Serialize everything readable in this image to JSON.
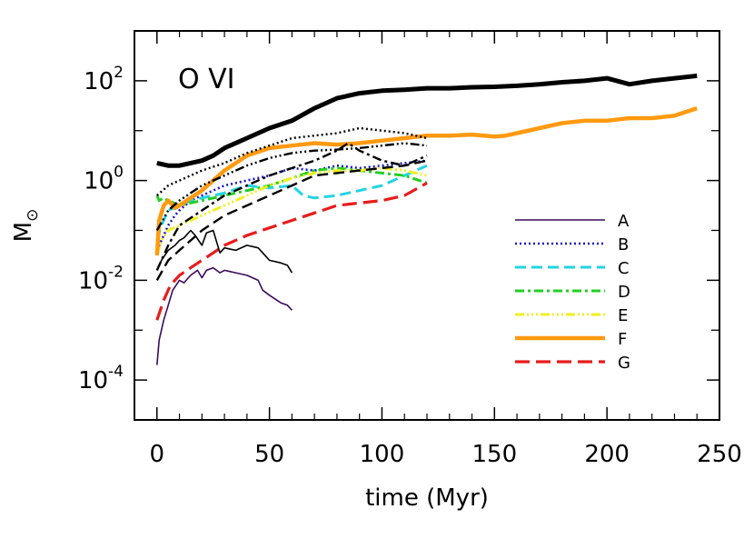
{
  "chart_data": {
    "type": "line",
    "title": "O VI",
    "xlabel": "time (Myr)",
    "ylabel": "M",
    "ylabel_symbol": "⊙",
    "xlim": [
      -10,
      250
    ],
    "ylim_log10": [
      -4.8,
      3.0
    ],
    "x_ticks": [
      0,
      50,
      100,
      150,
      200,
      250
    ],
    "x_tick_labels": [
      "0",
      "50",
      "100",
      "150",
      "200",
      "250"
    ],
    "y_ticks_log10": [
      -4,
      -2,
      0,
      2
    ],
    "y_tick_labels": [
      {
        "base": "10",
        "exp": "-4"
      },
      {
        "base": "10",
        "exp": "-2"
      },
      {
        "base": "10",
        "exp": "0"
      },
      {
        "base": "10",
        "exp": "2"
      }
    ],
    "legend": {
      "placement": "center-right",
      "entries": [
        "A",
        "B",
        "C",
        "D",
        "E",
        "F",
        "G"
      ]
    },
    "series": [
      {
        "name": "A",
        "color": "#3b0a5a",
        "dash": "none",
        "width": 1.6,
        "x": [
          0,
          1,
          2,
          3,
          5,
          7,
          10,
          12,
          15,
          18,
          20,
          22,
          25,
          28,
          30,
          35,
          40,
          45,
          47,
          50,
          55,
          58,
          60
        ],
        "y": [
          -3.7,
          -3.2,
          -3.0,
          -2.8,
          -2.5,
          -2.2,
          -2.0,
          -2.05,
          -1.9,
          -1.8,
          -1.95,
          -1.8,
          -1.75,
          -1.85,
          -1.8,
          -1.85,
          -1.9,
          -2.0,
          -2.2,
          -2.3,
          -2.45,
          -2.5,
          -2.6
        ]
      },
      {
        "name": "B",
        "color": "#1818c8",
        "dash": "2,3",
        "width": 2.6,
        "x": [
          0,
          2,
          5,
          8,
          10,
          15,
          20,
          25,
          30,
          40,
          50,
          60,
          70,
          80,
          90,
          100,
          110,
          120
        ],
        "y": [
          -1.4,
          -1.2,
          -0.9,
          -0.7,
          -0.6,
          -0.4,
          -0.3,
          -0.2,
          -0.1,
          0.0,
          0.1,
          0.25,
          0.2,
          0.3,
          0.25,
          0.3,
          0.35,
          0.4
        ]
      },
      {
        "name": "C",
        "color": "#22d4e4",
        "dash": "12,6",
        "width": 3,
        "x": [
          0,
          2,
          5,
          10,
          15,
          20,
          25,
          30,
          40,
          50,
          60,
          65,
          70,
          80,
          90,
          100,
          110,
          120
        ],
        "y": [
          -1.2,
          -0.9,
          -0.6,
          -0.5,
          -0.4,
          -0.35,
          -0.3,
          -0.25,
          -0.1,
          -0.15,
          -0.1,
          -0.3,
          -0.35,
          -0.3,
          -0.2,
          -0.1,
          0.1,
          0.3
        ]
      },
      {
        "name": "D",
        "color": "#22d022",
        "dash": "10,4,3,4",
        "width": 3,
        "x": [
          0,
          1,
          3,
          5,
          10,
          15,
          20,
          30,
          40,
          50,
          60,
          70,
          80,
          90,
          100,
          110,
          120
        ],
        "y": [
          -0.3,
          -0.4,
          -0.35,
          -0.4,
          -0.5,
          -0.45,
          -0.4,
          -0.3,
          -0.2,
          -0.1,
          0.05,
          0.2,
          0.25,
          0.2,
          0.15,
          0.1,
          -0.05
        ]
      },
      {
        "name": "E",
        "color": "#f0f020",
        "dash": "10,3,2,3,2,3,2,3",
        "width": 3,
        "x": [
          0,
          2,
          5,
          10,
          15,
          20,
          30,
          40,
          50,
          60,
          70,
          80,
          90,
          100,
          110,
          120
        ],
        "y": [
          -1.5,
          -1.2,
          -1.0,
          -0.9,
          -0.8,
          -0.7,
          -0.5,
          -0.3,
          -0.1,
          0.05,
          0.15,
          0.2,
          0.2,
          0.25,
          0.2,
          0.1
        ]
      },
      {
        "name": "F",
        "color": "#ff9a10",
        "dash": "none",
        "width": 4.5,
        "x": [
          0,
          1,
          3,
          5,
          8,
          10,
          15,
          20,
          25,
          30,
          40,
          50,
          60,
          70,
          80,
          90,
          100,
          110,
          120,
          130,
          140,
          150,
          155,
          160,
          170,
          180,
          190,
          200,
          210,
          220,
          230,
          240
        ],
        "y": [
          -1.5,
          -0.8,
          -0.5,
          -0.4,
          -0.55,
          -0.5,
          -0.35,
          -0.2,
          0.0,
          0.2,
          0.5,
          0.65,
          0.7,
          0.75,
          0.72,
          0.75,
          0.8,
          0.85,
          0.9,
          0.9,
          0.92,
          0.88,
          0.9,
          0.95,
          1.05,
          1.15,
          1.2,
          1.2,
          1.25,
          1.25,
          1.3,
          1.45
        ]
      },
      {
        "name": "G",
        "color": "#e81c1c",
        "dash": "16,7",
        "width": 3.2,
        "x": [
          0,
          3,
          6,
          10,
          15,
          20,
          25,
          30,
          40,
          50,
          60,
          70,
          80,
          90,
          100,
          110,
          120
        ],
        "y": [
          -2.8,
          -2.4,
          -2.1,
          -1.9,
          -1.75,
          -1.6,
          -1.45,
          -1.3,
          -1.1,
          -0.95,
          -0.8,
          -0.65,
          -0.5,
          -0.45,
          -0.4,
          -0.3,
          -0.05
        ]
      },
      {
        "name": "",
        "color": "#000000",
        "dash": "none",
        "width": 5,
        "x": [
          0,
          5,
          10,
          15,
          20,
          25,
          30,
          40,
          50,
          60,
          70,
          80,
          90,
          100,
          110,
          120,
          130,
          140,
          150,
          160,
          170,
          180,
          190,
          200,
          210,
          220,
          230,
          240
        ],
        "y": [
          0.35,
          0.3,
          0.3,
          0.35,
          0.4,
          0.5,
          0.65,
          0.85,
          1.05,
          1.2,
          1.45,
          1.65,
          1.75,
          1.8,
          1.82,
          1.85,
          1.85,
          1.87,
          1.88,
          1.9,
          1.93,
          1.97,
          2.0,
          2.05,
          1.93,
          2.0,
          2.05,
          2.1
        ]
      },
      {
        "name": "",
        "color": "#000000",
        "dash": "none",
        "width": 1.6,
        "x": [
          0,
          2,
          5,
          8,
          10,
          12,
          15,
          17,
          20,
          22,
          25,
          28,
          30,
          35,
          40,
          45,
          48,
          50,
          55,
          58,
          60
        ],
        "y": [
          -1.8,
          -1.6,
          -1.4,
          -1.3,
          -1.2,
          -1.15,
          -1.0,
          -1.1,
          -1.3,
          -1.05,
          -1.0,
          -1.45,
          -1.35,
          -1.4,
          -1.3,
          -1.35,
          -1.5,
          -1.6,
          -1.65,
          -1.7,
          -1.85
        ]
      },
      {
        "name": "",
        "color": "#000000",
        "dash": "2,3",
        "width": 2.4,
        "x": [
          0,
          5,
          10,
          20,
          30,
          40,
          50,
          60,
          70,
          80,
          90,
          100,
          110,
          120
        ],
        "y": [
          -0.3,
          -0.1,
          0.0,
          0.2,
          0.35,
          0.55,
          0.7,
          0.85,
          0.9,
          0.95,
          1.05,
          1.0,
          0.95,
          0.85
        ]
      },
      {
        "name": "",
        "color": "#000000",
        "dash": "10,4,3,4",
        "width": 2.4,
        "x": [
          0,
          5,
          10,
          20,
          30,
          40,
          50,
          60,
          70,
          80,
          85,
          90,
          100,
          110,
          120
        ],
        "y": [
          -1.8,
          -1.3,
          -0.9,
          -0.6,
          -0.3,
          -0.1,
          0.1,
          0.25,
          0.4,
          0.6,
          0.75,
          0.6,
          0.4,
          0.3,
          0.5
        ]
      },
      {
        "name": "",
        "color": "#000000",
        "dash": "12,6",
        "width": 2.4,
        "x": [
          0,
          5,
          10,
          15,
          20,
          30,
          40,
          50,
          60,
          70,
          80,
          90,
          100,
          110,
          120
        ],
        "y": [
          -2.0,
          -1.6,
          -1.4,
          -1.2,
          -1.0,
          -0.7,
          -0.5,
          -0.3,
          -0.1,
          0.1,
          0.15,
          0.2,
          0.25,
          0.3,
          0.4
        ]
      },
      {
        "name": "",
        "color": "#000000",
        "dash": "10,3,2,3,2,3,2,3",
        "width": 2.4,
        "x": [
          0,
          5,
          10,
          20,
          30,
          40,
          50,
          60,
          70,
          80,
          90,
          100,
          110,
          120
        ],
        "y": [
          -1.0,
          -0.6,
          -0.4,
          -0.1,
          0.1,
          0.3,
          0.45,
          0.55,
          0.6,
          0.62,
          0.65,
          0.7,
          0.75,
          0.7
        ]
      }
    ]
  }
}
